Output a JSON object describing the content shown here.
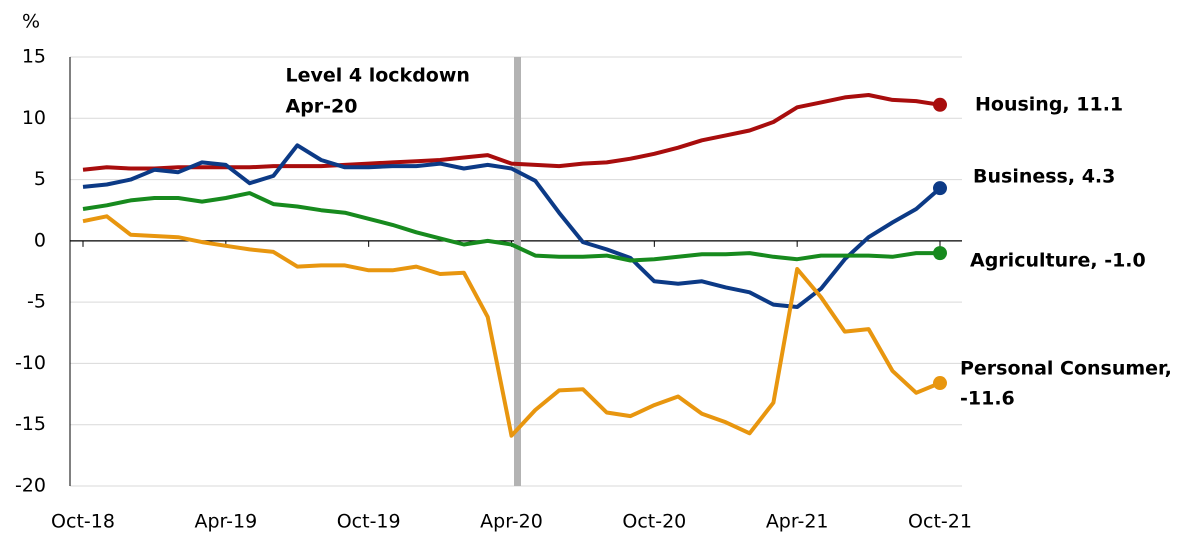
{
  "chart_data": {
    "type": "line",
    "ylabel": "%",
    "categories": [
      "Oct-18",
      null,
      null,
      null,
      null,
      null,
      "Apr-19",
      null,
      null,
      null,
      null,
      null,
      "Oct-19",
      null,
      null,
      null,
      null,
      null,
      "Apr-20",
      null,
      null,
      null,
      null,
      null,
      "Oct-20",
      null,
      null,
      null,
      null,
      null,
      "Apr-21",
      null,
      null,
      null,
      null,
      null,
      "Oct-21"
    ],
    "ylim": [
      -20,
      15
    ],
    "yticks": [
      -20,
      -15,
      -10,
      -5,
      0,
      5,
      10,
      15
    ],
    "grid": true,
    "annotation": {
      "text": [
        "Level 4 lockdown",
        "Apr-20"
      ],
      "x": 18,
      "color": "#b3b3b3"
    },
    "series": [
      {
        "name": "Housing",
        "color": "#a80d0d",
        "end_label": [
          "Housing, 11.1"
        ],
        "values": [
          5.8,
          6.0,
          5.9,
          5.9,
          6.0,
          6.0,
          6.0,
          6.0,
          6.1,
          6.1,
          6.1,
          6.2,
          6.3,
          6.4,
          6.5,
          6.6,
          6.8,
          7.0,
          6.3,
          6.2,
          6.1,
          6.3,
          6.4,
          6.7,
          7.1,
          7.6,
          8.2,
          8.6,
          9.0,
          9.7,
          10.9,
          11.3,
          11.7,
          11.9,
          11.5,
          11.4,
          11.1
        ]
      },
      {
        "name": "Business",
        "color": "#0c3a86",
        "end_label": [
          "Business, 4.3"
        ],
        "values": [
          4.4,
          4.6,
          5.0,
          5.8,
          5.6,
          6.4,
          6.2,
          4.7,
          5.3,
          7.8,
          6.6,
          6.0,
          6.0,
          6.1,
          6.1,
          6.3,
          5.9,
          6.2,
          5.9,
          4.9,
          2.3,
          -0.1,
          -0.7,
          -1.4,
          -3.3,
          -3.5,
          -3.3,
          -3.8,
          -4.2,
          -5.2,
          -5.4,
          -3.9,
          -1.5,
          0.3,
          1.5,
          2.6,
          4.3
        ]
      },
      {
        "name": "Agriculture",
        "color": "#178a1e",
        "end_label": [
          "Agriculture, -1.0"
        ],
        "values": [
          2.6,
          2.9,
          3.3,
          3.5,
          3.5,
          3.2,
          3.5,
          3.9,
          3.0,
          2.8,
          2.5,
          2.3,
          1.8,
          1.3,
          0.7,
          0.2,
          -0.3,
          0.0,
          -0.3,
          -1.2,
          -1.3,
          -1.3,
          -1.2,
          -1.6,
          -1.5,
          -1.3,
          -1.1,
          -1.1,
          -1.0,
          -1.3,
          -1.5,
          -1.2,
          -1.2,
          -1.2,
          -1.3,
          -1.0,
          -1.0
        ]
      },
      {
        "name": "Personal Consumer",
        "color": "#e8960f",
        "end_label": [
          "Personal Consumer,",
          "-11.6"
        ],
        "values": [
          1.6,
          2.0,
          0.5,
          0.4,
          0.3,
          -0.1,
          -0.4,
          -0.7,
          -0.9,
          -2.1,
          -2.0,
          -2.0,
          -2.4,
          -2.4,
          -2.1,
          -2.7,
          -2.6,
          -6.2,
          -15.9,
          -13.8,
          -12.2,
          -12.1,
          -14.0,
          -14.3,
          -13.4,
          -12.7,
          -14.1,
          -14.8,
          -15.7,
          -13.2,
          -2.3,
          -4.6,
          -7.4,
          -7.2,
          -10.6,
          -12.4,
          -11.6
        ]
      }
    ]
  }
}
